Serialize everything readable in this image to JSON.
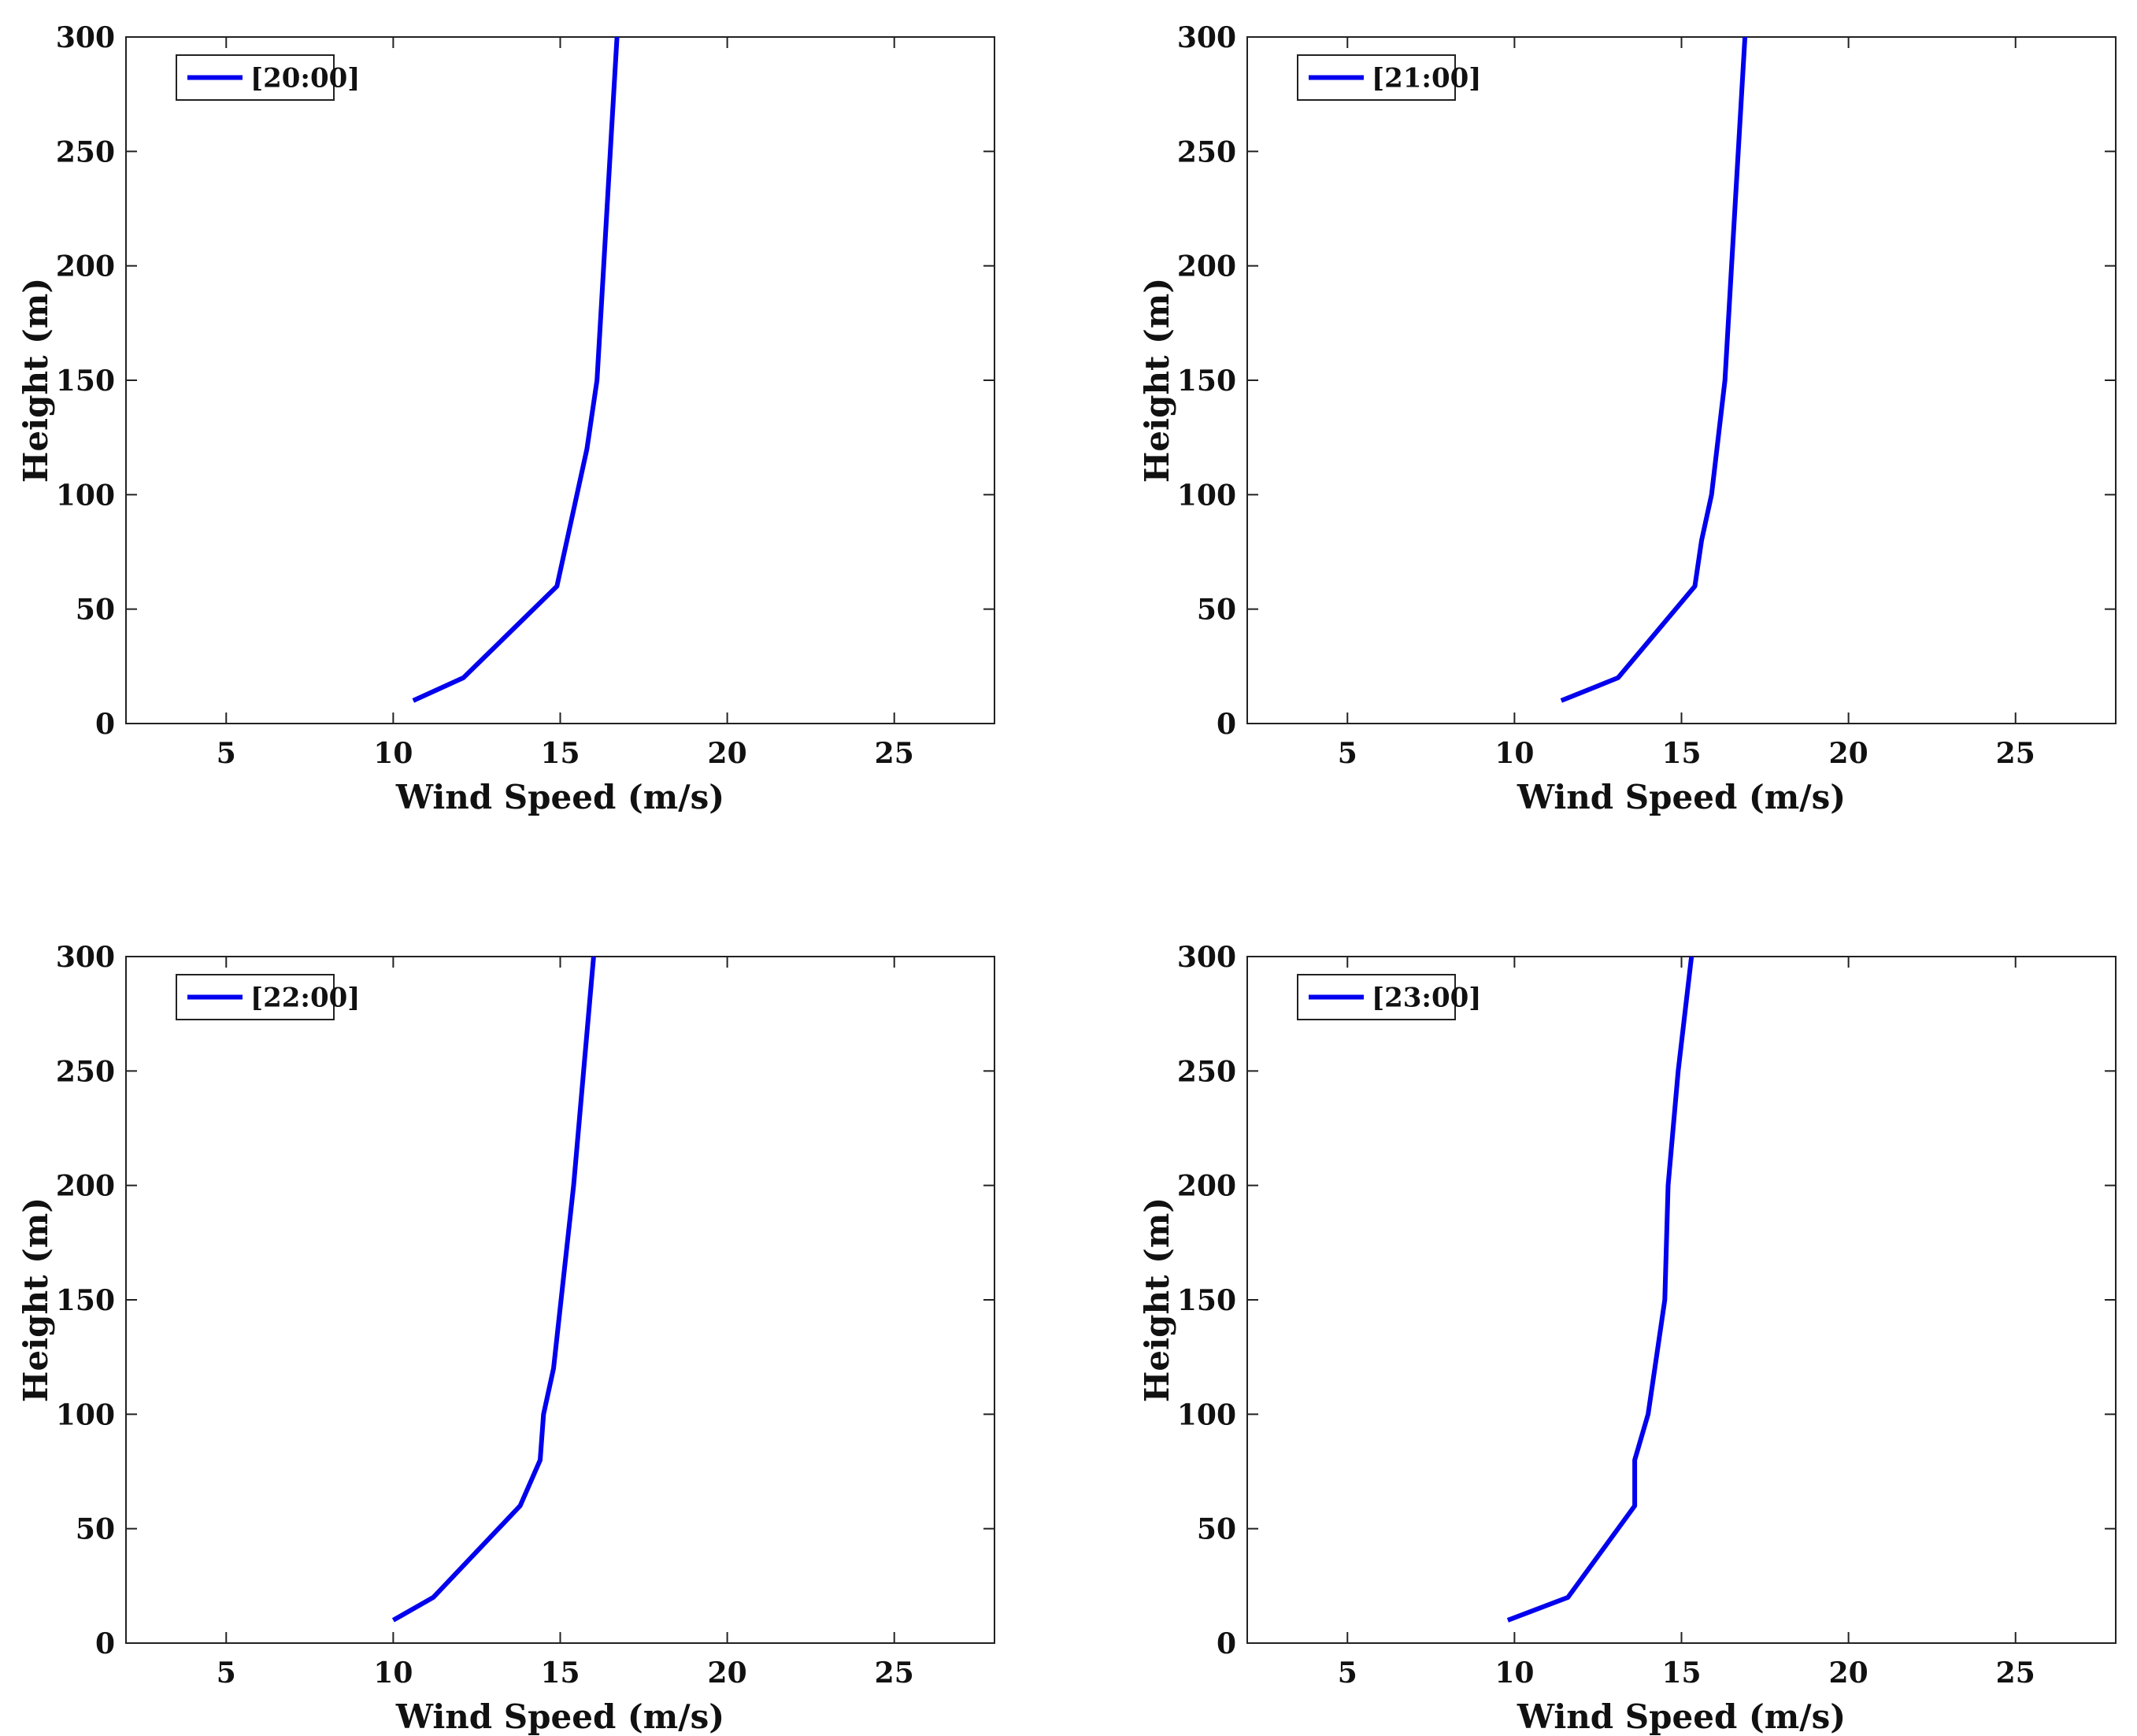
{
  "figure": {
    "line_color": "#0000ee",
    "axis_color": "#222222"
  },
  "chart_data": [
    {
      "type": "line",
      "xlabel": "Wind Speed (m/s)",
      "ylabel": "Height (m)",
      "xlim": [
        2,
        28
      ],
      "ylim": [
        0,
        300
      ],
      "xticks": [
        5,
        10,
        15,
        20,
        25
      ],
      "yticks": [
        0,
        50,
        100,
        150,
        200,
        250,
        300
      ],
      "grid": false,
      "legend_position": "top-left",
      "series": [
        {
          "name": "[20:00]",
          "x": [
            10.6,
            12.1,
            14.9,
            15.2,
            15.8,
            16.1,
            16.3,
            16.5,
            16.7
          ],
          "y": [
            10,
            20,
            60,
            80,
            120,
            150,
            200,
            250,
            300
          ]
        }
      ]
    },
    {
      "type": "line",
      "xlabel": "Wind Speed (m/s)",
      "ylabel": "Height (m)",
      "xlim": [
        2,
        28
      ],
      "ylim": [
        0,
        300
      ],
      "xticks": [
        5,
        10,
        15,
        20,
        25
      ],
      "yticks": [
        0,
        50,
        100,
        150,
        200,
        250,
        300
      ],
      "grid": false,
      "legend_position": "top-left",
      "series": [
        {
          "name": "[21:00]",
          "x": [
            11.4,
            13.1,
            15.4,
            15.6,
            15.9,
            16.3,
            16.5,
            16.7,
            16.9
          ],
          "y": [
            10,
            20,
            60,
            80,
            100,
            150,
            200,
            250,
            300
          ]
        }
      ]
    },
    {
      "type": "line",
      "xlabel": "Wind Speed (m/s)",
      "ylabel": "Height (m)",
      "xlim": [
        2,
        28
      ],
      "ylim": [
        0,
        300
      ],
      "xticks": [
        5,
        10,
        15,
        20,
        25
      ],
      "yticks": [
        0,
        50,
        100,
        150,
        200,
        250,
        300
      ],
      "grid": false,
      "legend_position": "top-left",
      "series": [
        {
          "name": "[22:00]",
          "x": [
            10.0,
            11.2,
            13.8,
            14.4,
            14.5,
            14.8,
            15.4,
            15.7,
            16.0
          ],
          "y": [
            10,
            20,
            60,
            80,
            100,
            120,
            200,
            250,
            300
          ]
        }
      ]
    },
    {
      "type": "line",
      "xlabel": "Wind Speed (m/s)",
      "ylabel": "Height (m)",
      "xlim": [
        2,
        28
      ],
      "ylim": [
        0,
        300
      ],
      "xticks": [
        5,
        10,
        15,
        20,
        25
      ],
      "yticks": [
        0,
        50,
        100,
        150,
        200,
        250,
        300
      ],
      "grid": false,
      "legend_position": "top-left",
      "series": [
        {
          "name": "[23:00]",
          "x": [
            9.8,
            11.6,
            13.6,
            13.6,
            14.0,
            14.2,
            14.5,
            14.6,
            14.9,
            15.3
          ],
          "y": [
            10,
            20,
            60,
            80,
            100,
            120,
            150,
            200,
            250,
            300
          ]
        }
      ]
    }
  ]
}
